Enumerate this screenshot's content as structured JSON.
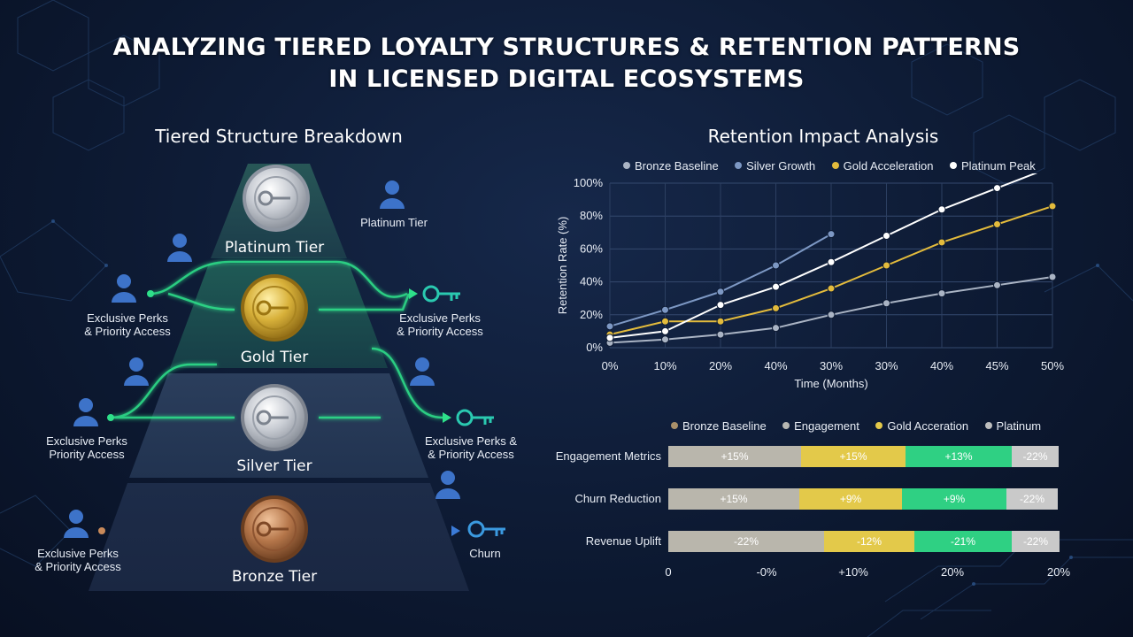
{
  "title_line1": "ANALYZING TIERED LOYALTY STRUCTURES & RETENTION PATTERNS",
  "title_line2": "IN LICENSED DIGITAL ECOSYSTEMS",
  "left": {
    "section_title": "Tiered Structure Breakdown",
    "tiers": {
      "platinum": "Platinum Tier",
      "gold": "Gold Tier",
      "silver": "Silver Tier",
      "bronze": "Bronze Tier"
    },
    "annotations": {
      "top_right": "Platinum Tier",
      "gold_left_1": "Exclusive Perks",
      "gold_left_2": "& Priority Access",
      "gold_right_1": "Exclusive Perks",
      "gold_right_2": "& Priority Access",
      "silver_left_1": "Exclusive Perks",
      "silver_left_2": "Priority Access",
      "silver_right_1": "Exclusive Perks &",
      "silver_right_2": "& Priority Access",
      "bronze_left_1": "Exclusive Perks",
      "bronze_left_2": "& Priority Access",
      "bronze_right": "Churn"
    },
    "colors": {
      "platinum": "#c9ced6",
      "gold": "#d8b13a",
      "silver": "#b9bec6",
      "bronze": "#b5764a",
      "accent_green": "#2ee08a",
      "accent_blue": "#3b7bd8"
    }
  },
  "chart_data": [
    {
      "type": "line",
      "title": "Retention Impact Analysis",
      "xlabel": "Time (Months)",
      "ylabel": "Retention Rate (%)",
      "x_ticks": [
        "0%",
        "10%",
        "20%",
        "40%",
        "30%",
        "30%",
        "40%",
        "45%",
        "50%"
      ],
      "y_ticks": [
        "0%",
        "20%",
        "40%",
        "60%",
        "80%",
        "100%"
      ],
      "ylim": [
        0,
        100
      ],
      "grid": true,
      "legend_position": "top",
      "series": [
        {
          "name": "Bronze Baseline",
          "color": "#aab4c4",
          "values": [
            3,
            5,
            8,
            12,
            20,
            27,
            33,
            38,
            43
          ]
        },
        {
          "name": "Silver Growth",
          "color": "#7d98c4",
          "values": [
            13,
            23,
            34,
            50,
            69,
            null,
            null,
            null,
            null
          ]
        },
        {
          "name": "Gold Acceleration",
          "color": "#e3bb3c",
          "values": [
            8,
            16,
            16,
            24,
            36,
            50,
            64,
            75,
            86
          ]
        },
        {
          "name": "Platinum Peak",
          "color": "#ffffff",
          "values": [
            6,
            10,
            26,
            37,
            52,
            68,
            84,
            97,
            110
          ]
        }
      ]
    },
    {
      "type": "bar",
      "orientation": "horizontal",
      "stacked": true,
      "legend": [
        {
          "name": "Bronze Baseline",
          "color": "#a9906a"
        },
        {
          "name": "Engagement",
          "color": "#b7b7b2"
        },
        {
          "name": "Gold Acceration",
          "color": "#e3c94a"
        },
        {
          "name": "Platinum",
          "color": "#bdbdbd"
        }
      ],
      "categories": [
        "Engagement Metrics",
        "Churn Reduction",
        "Revenue Uplift"
      ],
      "segments": [
        [
          {
            "label": "+15%",
            "value": 150,
            "color": "#b9b6ac"
          },
          {
            "label": "+15%",
            "value": 118,
            "color": "#e3c94a"
          },
          {
            "label": "+13%",
            "value": 120,
            "color": "#2fd083"
          },
          {
            "label": "-22%",
            "value": 53,
            "color": "#c9c9c9"
          }
        ],
        [
          {
            "label": "+15%",
            "value": 148,
            "color": "#b9b6ac"
          },
          {
            "label": "+9%",
            "value": 116,
            "color": "#e3c94a"
          },
          {
            "label": "+9%",
            "value": 118,
            "color": "#2fd083"
          },
          {
            "label": "-22%",
            "value": 58,
            "color": "#c9c9c9"
          }
        ],
        [
          {
            "label": "-22%",
            "value": 176,
            "color": "#b9b6ac"
          },
          {
            "label": "-12%",
            "value": 102,
            "color": "#e3c94a"
          },
          {
            "label": "-21%",
            "value": 110,
            "color": "#2fd083"
          },
          {
            "label": "-22%",
            "value": 54,
            "color": "#c9c9c9"
          }
        ]
      ],
      "x_ticks": [
        "0",
        "-0%",
        "+10%",
        "20%",
        "20%"
      ]
    }
  ]
}
